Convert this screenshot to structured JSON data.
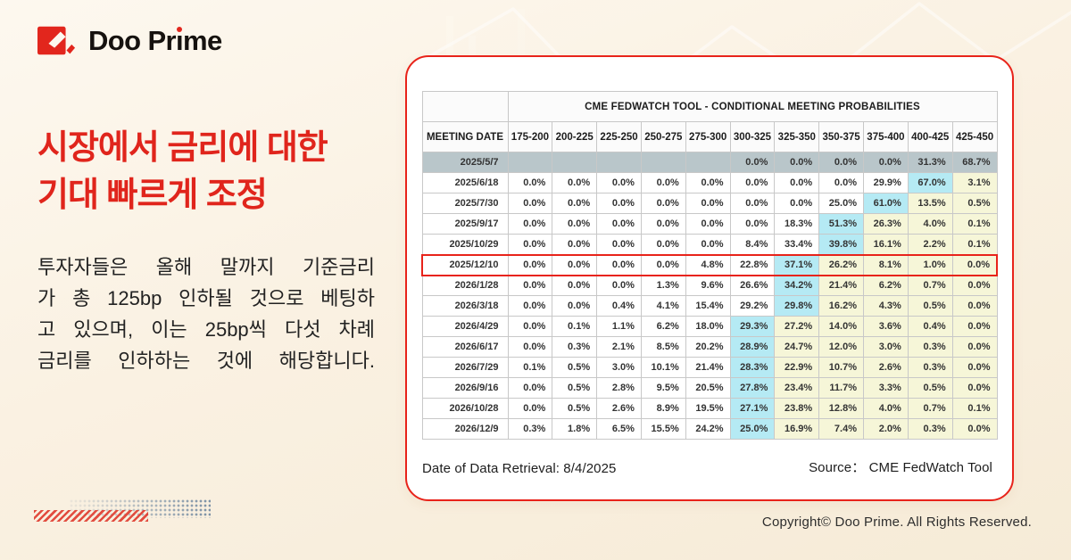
{
  "brand": {
    "logo_text": "Doo Prime"
  },
  "colors": {
    "brand_red": "#E2261D",
    "highlight_cyan": "#B5EAF4",
    "highlight_yellow": "#F6F6D8",
    "muted_row_gray": "#B9C6CA"
  },
  "headline": {
    "lines": [
      "시장에서 금리에 대한",
      "기대 빠르게 조정"
    ]
  },
  "body": {
    "lines": [
      "투자자들은 올해 말까지 기준금리",
      "가 총 125bp 인하될 것으로 베팅하",
      "고 있으며, 이는 25bp씩 다섯 차례",
      "금리를 인하하는 것에 해당합니다."
    ]
  },
  "card": {
    "table": {
      "title": "CME FEDWATCH TOOL - CONDITIONAL MEETING PROBABILITIES",
      "meeting_date_header": "MEETING DATE",
      "rate_headers": [
        "175-200",
        "200-225",
        "225-250",
        "250-275",
        "275-300",
        "300-325",
        "325-350",
        "350-375",
        "375-400",
        "400-425",
        "425-450"
      ],
      "rows": [
        {
          "date": "2025/5/7",
          "muted": true,
          "cyan": -1,
          "values": [
            "",
            "",
            "",
            "",
            "",
            "0.0%",
            "0.0%",
            "0.0%",
            "0.0%",
            "31.3%",
            "68.7%"
          ]
        },
        {
          "date": "2025/6/18",
          "cyan": 9,
          "values": [
            "0.0%",
            "0.0%",
            "0.0%",
            "0.0%",
            "0.0%",
            "0.0%",
            "0.0%",
            "0.0%",
            "29.9%",
            "67.0%",
            "3.1%"
          ]
        },
        {
          "date": "2025/7/30",
          "cyan": 8,
          "values": [
            "0.0%",
            "0.0%",
            "0.0%",
            "0.0%",
            "0.0%",
            "0.0%",
            "0.0%",
            "25.0%",
            "61.0%",
            "13.5%",
            "0.5%"
          ]
        },
        {
          "date": "2025/9/17",
          "cyan": 7,
          "values": [
            "0.0%",
            "0.0%",
            "0.0%",
            "0.0%",
            "0.0%",
            "0.0%",
            "18.3%",
            "51.3%",
            "26.3%",
            "4.0%",
            "0.1%"
          ]
        },
        {
          "date": "2025/10/29",
          "cyan": 7,
          "values": [
            "0.0%",
            "0.0%",
            "0.0%",
            "0.0%",
            "0.0%",
            "8.4%",
            "33.4%",
            "39.8%",
            "16.1%",
            "2.2%",
            "0.1%"
          ]
        },
        {
          "date": "2025/12/10",
          "cyan": 6,
          "boxed": true,
          "values": [
            "0.0%",
            "0.0%",
            "0.0%",
            "0.0%",
            "4.8%",
            "22.8%",
            "37.1%",
            "26.2%",
            "8.1%",
            "1.0%",
            "0.0%"
          ]
        },
        {
          "date": "2026/1/28",
          "cyan": 6,
          "values": [
            "0.0%",
            "0.0%",
            "0.0%",
            "1.3%",
            "9.6%",
            "26.6%",
            "34.2%",
            "21.4%",
            "6.2%",
            "0.7%",
            "0.0%"
          ]
        },
        {
          "date": "2026/3/18",
          "cyan": 6,
          "values": [
            "0.0%",
            "0.0%",
            "0.4%",
            "4.1%",
            "15.4%",
            "29.2%",
            "29.8%",
            "16.2%",
            "4.3%",
            "0.5%",
            "0.0%"
          ]
        },
        {
          "date": "2026/4/29",
          "cyan": 5,
          "values": [
            "0.0%",
            "0.1%",
            "1.1%",
            "6.2%",
            "18.0%",
            "29.3%",
            "27.2%",
            "14.0%",
            "3.6%",
            "0.4%",
            "0.0%"
          ]
        },
        {
          "date": "2026/6/17",
          "cyan": 5,
          "values": [
            "0.0%",
            "0.3%",
            "2.1%",
            "8.5%",
            "20.2%",
            "28.9%",
            "24.7%",
            "12.0%",
            "3.0%",
            "0.3%",
            "0.0%"
          ]
        },
        {
          "date": "2026/7/29",
          "cyan": 5,
          "values": [
            "0.1%",
            "0.5%",
            "3.0%",
            "10.1%",
            "21.4%",
            "28.3%",
            "22.9%",
            "10.7%",
            "2.6%",
            "0.3%",
            "0.0%"
          ]
        },
        {
          "date": "2026/9/16",
          "cyan": 5,
          "values": [
            "0.0%",
            "0.5%",
            "2.8%",
            "9.5%",
            "20.5%",
            "27.8%",
            "23.4%",
            "11.7%",
            "3.3%",
            "0.5%",
            "0.0%"
          ]
        },
        {
          "date": "2026/10/28",
          "cyan": 5,
          "values": [
            "0.0%",
            "0.5%",
            "2.6%",
            "8.9%",
            "19.5%",
            "27.1%",
            "23.8%",
            "12.8%",
            "4.0%",
            "0.7%",
            "0.1%"
          ]
        },
        {
          "date": "2026/12/9",
          "cyan": 5,
          "values": [
            "0.3%",
            "1.8%",
            "6.5%",
            "15.5%",
            "24.2%",
            "25.0%",
            "16.9%",
            "7.4%",
            "2.0%",
            "0.3%",
            "0.0%"
          ]
        }
      ]
    },
    "footer_left": "Date of Data Retrieval: 8/4/2025",
    "footer_right": "Source：  CME FedWatch Tool"
  },
  "copyright": "Copyright© Doo Prime. All Rights Reserved."
}
